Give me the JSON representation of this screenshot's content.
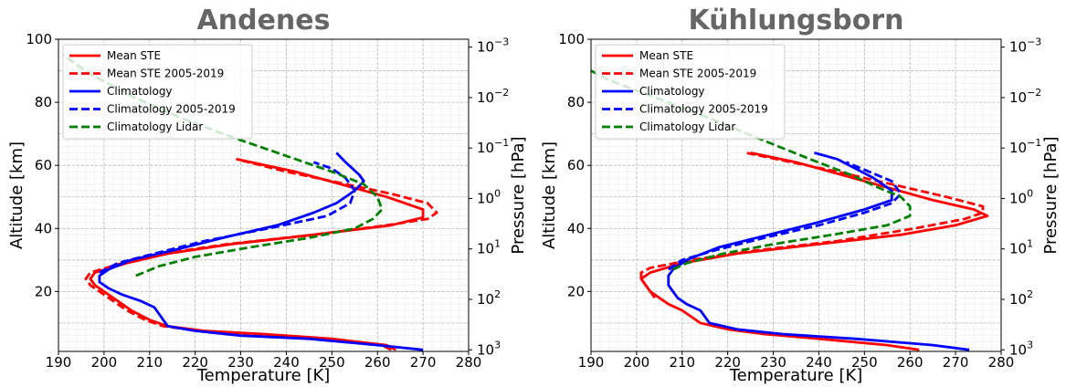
{
  "chart_data": [
    {
      "type": "line",
      "title": "Andenes",
      "xlabel": "Temperature [K]",
      "ylabel": "Altitude [km]",
      "y2label": "Pressure [hPa]",
      "xlim": [
        190,
        280
      ],
      "ylim": [
        1,
        100
      ],
      "xticks": [
        "190",
        "200",
        "210",
        "220",
        "230",
        "240",
        "250",
        "260",
        "270",
        "280"
      ],
      "yticks": [
        "20",
        "40",
        "60",
        "80",
        "100"
      ],
      "y2ticks": [
        {
          "base": "10",
          "exp": "3",
          "alt": 1.5
        },
        {
          "base": "10",
          "exp": "2",
          "alt": 17.5
        },
        {
          "base": "10",
          "exp": "1",
          "alt": 33.5
        },
        {
          "base": "10",
          "exp": "0",
          "alt": 49.5
        },
        {
          "base": "10",
          "exp": "−1",
          "alt": 65.5
        },
        {
          "base": "10",
          "exp": "−2",
          "alt": 81.5
        },
        {
          "base": "10",
          "exp": "−3",
          "alt": 97.5
        }
      ],
      "grid": true,
      "legend_position": "top-left",
      "series": [
        {
          "name": "Mean STE",
          "color": "#ff0000",
          "dash": "solid",
          "points": [
            [
              264,
              1.5
            ],
            [
              262,
              3
            ],
            [
              250,
              5
            ],
            [
              235,
              6.5
            ],
            [
              222,
              7.5
            ],
            [
              214,
              9
            ],
            [
              210,
              11
            ],
            [
              206,
              14
            ],
            [
              204,
              16
            ],
            [
              202,
              18
            ],
            [
              200,
              20
            ],
            [
              198,
              22
            ],
            [
              197,
              24
            ],
            [
              198,
              26
            ],
            [
              205,
              29
            ],
            [
              214,
              32
            ],
            [
              228,
              35
            ],
            [
              246,
              38
            ],
            [
              263,
              41
            ],
            [
              270,
              43.5
            ],
            [
              270,
              46
            ],
            [
              262,
              50
            ],
            [
              252,
              54
            ],
            [
              242,
              58
            ],
            [
              229,
              62
            ]
          ]
        },
        {
          "name": "Mean STE 2005-2019",
          "color": "#ff0000",
          "dash": "dashed",
          "points": [
            [
              263,
              1.5
            ],
            [
              261,
              3
            ],
            [
              249,
              5
            ],
            [
              234,
              6.5
            ],
            [
              221,
              7.5
            ],
            [
              213,
              9
            ],
            [
              209,
              11
            ],
            [
              205,
              14
            ],
            [
              203,
              16
            ],
            [
              201,
              18
            ],
            [
              199,
              20
            ],
            [
              197,
              22
            ],
            [
              196,
              24
            ],
            [
              197,
              26
            ],
            [
              204,
              29
            ],
            [
              213,
              32
            ],
            [
              227,
              35
            ],
            [
              246,
              38
            ],
            [
              262,
              41
            ],
            [
              271,
              43
            ],
            [
              273,
              45
            ],
            [
              271,
              48
            ],
            [
              263,
              51
            ],
            [
              250,
              55
            ],
            [
              240,
              58
            ],
            [
              229,
              62
            ]
          ]
        },
        {
          "name": "Climatology",
          "color": "#0000ff",
          "dash": "solid",
          "points": [
            [
              270,
              1.5
            ],
            [
              260,
              3
            ],
            [
              245,
              5
            ],
            [
              230,
              6
            ],
            [
              220,
              7.5
            ],
            [
              214,
              9
            ],
            [
              213,
              11
            ],
            [
              212,
              13
            ],
            [
              211,
              15
            ],
            [
              208,
              17
            ],
            [
              204,
              19
            ],
            [
              201,
              21
            ],
            [
              199,
              23
            ],
            [
              199,
              25
            ],
            [
              201,
              27
            ],
            [
              206,
              30
            ],
            [
              215,
              33
            ],
            [
              226,
              37
            ],
            [
              238,
              41
            ],
            [
              246,
              45
            ],
            [
              251,
              48
            ],
            [
              255,
              52
            ],
            [
              257,
              55
            ],
            [
              256,
              57
            ],
            [
              253,
              61
            ],
            [
              251,
              64
            ]
          ]
        },
        {
          "name": "Climatology 2005-2019",
          "color": "#0000ff",
          "dash": "dashed",
          "points": [
            [
              199,
              26
            ],
            [
              203,
              29
            ],
            [
              211,
              32
            ],
            [
              222,
              36
            ],
            [
              236,
              40
            ],
            [
              249,
              44
            ],
            [
              254,
              48
            ],
            [
              255,
              52
            ],
            [
              253,
              56
            ],
            [
              250,
              59
            ],
            [
              246,
              61
            ]
          ]
        },
        {
          "name": "Climatology Lidar",
          "color": "#008000",
          "dash": "dashed",
          "points": [
            [
              207,
              25
            ],
            [
              212,
              28
            ],
            [
              220,
              31
            ],
            [
              232,
              34
            ],
            [
              245,
              37
            ],
            [
              255,
              40
            ],
            [
              259,
              43
            ],
            [
              261,
              46
            ],
            [
              260,
              50
            ],
            [
              257,
              54
            ],
            [
              250,
              58
            ],
            [
              240,
              63
            ],
            [
              228,
              69
            ],
            [
              217,
              75
            ],
            [
              206,
              82
            ],
            [
              197,
              89
            ],
            [
              191,
              95
            ]
          ]
        }
      ]
    },
    {
      "type": "line",
      "title": "Kühlungsborn",
      "xlabel": "Temperature [K]",
      "ylabel": "Altitude [km]",
      "y2label": "Pressure [hPa]",
      "xlim": [
        190,
        280
      ],
      "ylim": [
        1,
        100
      ],
      "xticks": [
        "190",
        "200",
        "210",
        "220",
        "230",
        "240",
        "250",
        "260",
        "270",
        "280"
      ],
      "yticks": [
        "20",
        "40",
        "60",
        "80",
        "100"
      ],
      "y2ticks": [
        {
          "base": "10",
          "exp": "3",
          "alt": 1.5
        },
        {
          "base": "10",
          "exp": "2",
          "alt": 17.5
        },
        {
          "base": "10",
          "exp": "1",
          "alt": 33.5
        },
        {
          "base": "10",
          "exp": "0",
          "alt": 49.5
        },
        {
          "base": "10",
          "exp": "−1",
          "alt": 65.5
        },
        {
          "base": "10",
          "exp": "−2",
          "alt": 81.5
        },
        {
          "base": "10",
          "exp": "−3",
          "alt": 97.5
        }
      ],
      "grid": true,
      "legend_position": "top-left",
      "series": [
        {
          "name": "Mean STE",
          "color": "#ff0000",
          "dash": "solid",
          "points": [
            [
              262,
              1.5
            ],
            [
              255,
              3
            ],
            [
              240,
              5
            ],
            [
              228,
              6.5
            ],
            [
              220,
              8
            ],
            [
              214,
              10
            ],
            [
              212,
              12
            ],
            [
              210,
              14
            ],
            [
              207,
              16
            ],
            [
              205,
              18
            ],
            [
              203,
              20
            ],
            [
              202,
              22
            ],
            [
              201,
              24
            ],
            [
              203,
              26
            ],
            [
              210,
              29
            ],
            [
              222,
              32
            ],
            [
              240,
              35
            ],
            [
              258,
              38
            ],
            [
              270,
              41
            ],
            [
              277,
              44
            ],
            [
              274,
              46
            ],
            [
              265,
              49
            ],
            [
              255,
              53
            ],
            [
              245,
              57
            ],
            [
              235,
              61
            ],
            [
              225,
              64
            ]
          ]
        },
        {
          "name": "Mean STE 2005-2019",
          "color": "#ff0000",
          "dash": "dashed",
          "points": [
            [
              204,
              18
            ],
            [
              203,
              20
            ],
            [
              202,
              22
            ],
            [
              201,
              24
            ],
            [
              201,
              26
            ],
            [
              203,
              27.5
            ],
            [
              212,
              30
            ],
            [
              226,
              33
            ],
            [
              244,
              36
            ],
            [
              261,
              40
            ],
            [
              272,
              43
            ],
            [
              276,
              45
            ],
            [
              276,
              47
            ],
            [
              268,
              50
            ],
            [
              256,
              54
            ],
            [
              244,
              58
            ],
            [
              234,
              61
            ],
            [
              224,
              64
            ]
          ]
        },
        {
          "name": "Climatology",
          "color": "#0000ff",
          "dash": "solid",
          "points": [
            [
              273,
              1.5
            ],
            [
              265,
              3
            ],
            [
              248,
              5
            ],
            [
              232,
              6.5
            ],
            [
              222,
              8
            ],
            [
              216,
              10
            ],
            [
              215,
              12
            ],
            [
              214,
              14
            ],
            [
              211,
              16
            ],
            [
              209,
              18
            ],
            [
              208,
              20
            ],
            [
              207,
              22
            ],
            [
              207,
              25
            ],
            [
              208,
              27
            ],
            [
              211,
              30
            ],
            [
              218,
              34
            ],
            [
              229,
              38
            ],
            [
              240,
              42
            ],
            [
              250,
              46
            ],
            [
              256,
              49
            ],
            [
              256,
              52
            ],
            [
              252,
              56
            ],
            [
              248,
              59
            ],
            [
              244,
              62
            ],
            [
              239,
              64
            ]
          ]
        },
        {
          "name": "Climatology 2005-2019",
          "color": "#0000ff",
          "dash": "dashed",
          "points": [
            [
              207,
              27
            ],
            [
              210,
              30
            ],
            [
              217,
              33
            ],
            [
              228,
              37
            ],
            [
              240,
              41
            ],
            [
              250,
              45
            ],
            [
              256,
              48
            ],
            [
              258,
              51
            ],
            [
              256,
              55
            ],
            [
              251,
              58
            ],
            [
              246,
              61
            ]
          ]
        },
        {
          "name": "Climatology Lidar",
          "color": "#008000",
          "dash": "dashed",
          "points": [
            [
              208,
              27
            ],
            [
              211,
              29
            ],
            [
              219,
              32
            ],
            [
              230,
              35
            ],
            [
              243,
              38
            ],
            [
              255,
              41
            ],
            [
              260,
              44
            ],
            [
              260,
              47
            ],
            [
              258,
              50
            ],
            [
              253,
              53
            ],
            [
              247,
              57
            ],
            [
              238,
              62
            ],
            [
              226,
              69
            ],
            [
              216,
              75
            ],
            [
              205,
              81
            ],
            [
              194,
              87
            ],
            [
              190,
              90
            ]
          ]
        }
      ]
    }
  ]
}
